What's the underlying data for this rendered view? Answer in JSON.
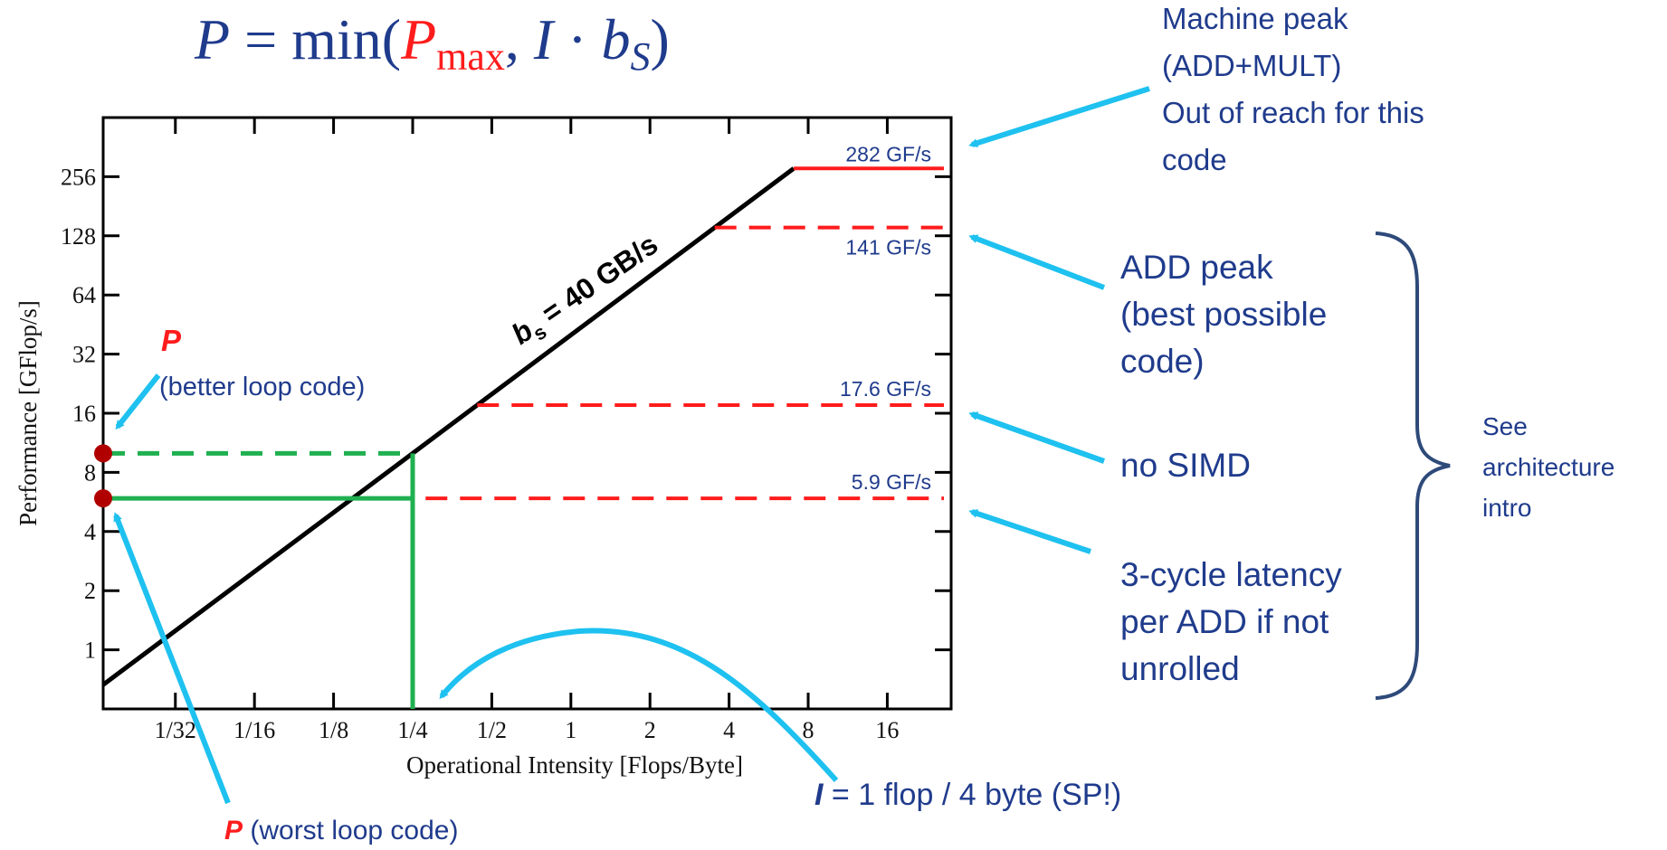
{
  "formula": {
    "lhs": "P",
    "eq": " = min(",
    "pmax_base": "P",
    "pmax_sub": "max",
    "comma": ", ",
    "i": "I",
    "dot": " · ",
    "bs_base": "b",
    "bs_sub": "S",
    "close": ")"
  },
  "annotations": {
    "machine_peak": [
      "Machine peak",
      "(ADD+MULT)",
      "Out of reach for this",
      "code"
    ],
    "add_peak": [
      "ADD peak",
      "(best possible",
      "code)"
    ],
    "no_simd": [
      "no SIMD"
    ],
    "latency": [
      "3-cycle latency",
      "per ADD if not",
      "unrolled"
    ],
    "see_arch": [
      "See",
      "architecture",
      "intro"
    ],
    "p_better_symbol": "P",
    "p_better_text": "(better loop code)",
    "p_worst_symbol": "P",
    "p_worst_text": " (worst loop code)",
    "intensity_symbol": "I",
    "intensity_text": " = 1 flop / 4 byte (SP!)",
    "bandwidth_base": "b",
    "bandwidth_sub": "s",
    "bandwidth_text": " = 40 GB/s"
  },
  "colors": {
    "accent_blue": "#1f3b8c",
    "arrow_cyan": "#1ec1ef",
    "roof_red": "#ff1c1c",
    "loop_green": "#1fb050",
    "point_darkred": "#b00000",
    "brace_navy": "#2e4a7a",
    "text_navy": "#2e4a7a"
  },
  "chart_data": {
    "type": "line",
    "xlabel": "Operational Intensity [Flops/Byte]",
    "ylabel": "Performance [GFlop/s]",
    "x_scale": "log2",
    "y_scale": "log2",
    "xlim": [
      0.0166,
      28
    ],
    "ylim": [
      0.5,
      512
    ],
    "x_ticks": [
      0.03125,
      0.0625,
      0.125,
      0.25,
      0.5,
      1,
      2,
      4,
      8,
      16
    ],
    "x_tick_labels": [
      "1/32",
      "1/16",
      "1/8",
      "1/4",
      "1/2",
      "1",
      "2",
      "4",
      "8",
      "16"
    ],
    "y_ticks": [
      1,
      2,
      4,
      8,
      16,
      32,
      64,
      128,
      256
    ],
    "y_tick_labels": [
      "1",
      "2",
      "4",
      "8",
      "16",
      "32",
      "64",
      "128",
      "256"
    ],
    "bandwidth_line": {
      "label": "b_s = 40 GB/s",
      "bandwidth": 40,
      "x_start": 0.0166
    },
    "ceilings": [
      {
        "label": "282 GF/s",
        "value": 282,
        "style": "solid",
        "color": "#ff1c1c"
      },
      {
        "label": "141 GF/s",
        "value": 141,
        "style": "dashed",
        "color": "#ff1c1c"
      },
      {
        "label": "17.6 GF/s",
        "value": 17.6,
        "style": "dashed",
        "color": "#ff1c1c"
      },
      {
        "label": "5.9 GF/s",
        "value": 5.9,
        "style": "dashed",
        "color": "#ff1c1c"
      }
    ],
    "loop_intensity": 0.25,
    "loop_points": [
      {
        "label": "better loop code",
        "value": 10,
        "style": "dashed"
      },
      {
        "label": "worst loop code",
        "value": 5.9,
        "style": "solid"
      }
    ]
  }
}
